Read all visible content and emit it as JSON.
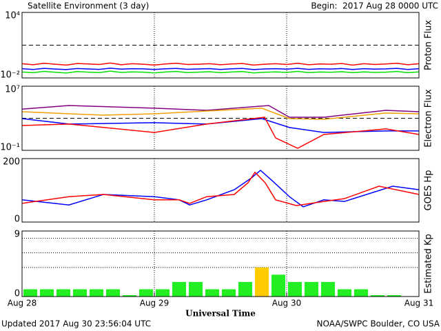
{
  "title": "Satellite Environment (3 day)",
  "begin": "Begin:  2017 Aug 28 0000 UTC",
  "updated": "Updated 2017 Aug 30 23:56:04 UTC",
  "credit": "NOAA/SWPC Boulder, CO USA",
  "x_axis": {
    "label": "Universal Time",
    "xlim": [
      0,
      72
    ],
    "xticks": [
      {
        "value": 0,
        "label": "Aug 28"
      },
      {
        "value": 24,
        "label": "Aug 29"
      },
      {
        "value": 48,
        "label": "Aug 30"
      },
      {
        "value": 72,
        "label": "Aug 31"
      }
    ]
  },
  "chart_data": [
    {
      "type": "line",
      "ylabel": "Proton Flux",
      "log": true,
      "ylim": [
        0.01,
        10000
      ],
      "yticks": [
        {
          "value": 10000,
          "label": "10⁴"
        },
        {
          "value": 0.01,
          "label": "10⁻²"
        }
      ],
      "threshold": 10,
      "series": [
        {
          "color": "#ff0000",
          "x": [
            0,
            2,
            4,
            6,
            8,
            10,
            12,
            14,
            16,
            18,
            20,
            22,
            24,
            26,
            28,
            30,
            32,
            34,
            36,
            38,
            40,
            42,
            44,
            46,
            48,
            50,
            52,
            54,
            56,
            58,
            60,
            62,
            64,
            66,
            68,
            70,
            72
          ],
          "values": [
            0.2,
            0.16,
            0.22,
            0.18,
            0.15,
            0.21,
            0.19,
            0.17,
            0.23,
            0.16,
            0.2,
            0.18,
            0.15,
            0.19,
            0.22,
            0.17,
            0.18,
            0.2,
            0.16,
            0.19,
            0.21,
            0.15,
            0.18,
            0.2,
            0.17,
            0.22,
            0.16,
            0.19,
            0.18,
            0.21,
            0.15,
            0.2,
            0.17,
            0.19,
            0.22,
            0.16,
            0.2
          ]
        },
        {
          "color": "#0000ff",
          "x": [
            0,
            2,
            4,
            6,
            8,
            10,
            12,
            14,
            16,
            18,
            20,
            22,
            24,
            26,
            28,
            30,
            32,
            34,
            36,
            38,
            40,
            42,
            44,
            46,
            48,
            50,
            52,
            54,
            56,
            58,
            60,
            62,
            64,
            66,
            68,
            70,
            72
          ],
          "values": [
            0.07,
            0.06,
            0.075,
            0.065,
            0.058,
            0.072,
            0.066,
            0.061,
            0.078,
            0.063,
            0.07,
            0.067,
            0.059,
            0.068,
            0.074,
            0.062,
            0.066,
            0.071,
            0.06,
            0.069,
            0.073,
            0.058,
            0.066,
            0.07,
            0.063,
            0.076,
            0.061,
            0.068,
            0.065,
            0.072,
            0.059,
            0.07,
            0.064,
            0.067,
            0.075,
            0.06,
            0.07
          ]
        },
        {
          "color": "#00e000",
          "x": [
            0,
            2,
            4,
            6,
            8,
            10,
            12,
            14,
            16,
            18,
            20,
            22,
            24,
            26,
            28,
            30,
            32,
            34,
            36,
            38,
            40,
            42,
            44,
            46,
            48,
            50,
            52,
            54,
            56,
            58,
            60,
            62,
            64,
            66,
            68,
            70,
            72
          ],
          "values": [
            0.035,
            0.03,
            0.04,
            0.033,
            0.028,
            0.038,
            0.034,
            0.031,
            0.042,
            0.032,
            0.036,
            0.034,
            0.029,
            0.035,
            0.039,
            0.031,
            0.034,
            0.037,
            0.03,
            0.035,
            0.038,
            0.029,
            0.033,
            0.036,
            0.032,
            0.04,
            0.031,
            0.035,
            0.033,
            0.037,
            0.03,
            0.036,
            0.032,
            0.034,
            0.039,
            0.03,
            0.036
          ]
        }
      ]
    },
    {
      "type": "line",
      "ylabel": "Electron Flux",
      "log": true,
      "ylim": [
        0.1,
        10000000
      ],
      "yticks": [
        {
          "value": 10000000,
          "label": "10⁷"
        },
        {
          "value": 0.1,
          "label": "10⁻¹"
        }
      ],
      "threshold": 1000,
      "series": [
        {
          "color": "#800080",
          "x": [
            0,
            8.5,
            24,
            33.5,
            44.75,
            48.5,
            54.75,
            66,
            72
          ],
          "values": [
            14000,
            39000,
            18000,
            9800,
            39000,
            1350,
            1350,
            9800,
            6600
          ]
        },
        {
          "color": "#f0a000",
          "x": [
            0,
            14.75,
            24,
            33.5,
            43.5,
            48.5,
            54.75,
            66,
            72
          ],
          "values": [
            6600,
            2450,
            3600,
            8000,
            18000,
            900,
            740,
            4500,
            3600
          ]
        },
        {
          "color": "#0000ff",
          "x": [
            0,
            8.5,
            24,
            33.5,
            43.5,
            48.5,
            54.75,
            66,
            72
          ],
          "values": [
            900,
            190,
            280,
            190,
            900,
            70,
            17,
            26,
            26
          ]
        },
        {
          "color": "#ff0000",
          "x": [
            0,
            8.5,
            24,
            33.5,
            44,
            46,
            50,
            54.75,
            66,
            72
          ],
          "values": [
            125,
            190,
            17,
            190,
            1350,
            3.5,
            0.18,
            9.5,
            47,
            9.5
          ]
        }
      ]
    },
    {
      "type": "line",
      "ylabel": "GOES Hp",
      "ylim": [
        0,
        200
      ],
      "yticks": [
        200,
        0
      ],
      "series": [
        {
          "color": "#0000ff",
          "x": [
            0,
            8.5,
            14.75,
            24,
            28.5,
            30.4,
            33.5,
            38.5,
            41.6,
            43.25,
            45.4,
            48.5,
            51,
            54.75,
            58.5,
            67.25,
            72
          ],
          "values": [
            70,
            54,
            87,
            80,
            70,
            54,
            70,
            102,
            139,
            163,
            130,
            80,
            48,
            70,
            65,
            113,
            102
          ]
        },
        {
          "color": "#ff0000",
          "x": [
            0,
            8.5,
            14.75,
            24,
            28.5,
            30.4,
            33.5,
            38.5,
            41,
            42.25,
            44.1,
            46,
            49.75,
            54.75,
            58.5,
            64.75,
            72
          ],
          "values": [
            59,
            80,
            87,
            70,
            70,
            59,
            80,
            87,
            124,
            157,
            124,
            70,
            52,
            65,
            74,
            113,
            87
          ]
        }
      ]
    },
    {
      "type": "bar",
      "ylabel": "Estimated Kp",
      "ylim": [
        0,
        9
      ],
      "yticks": [
        9,
        0
      ],
      "grid_lines": [
        4,
        6,
        8
      ],
      "bar_hours": 3,
      "values": [
        1,
        1,
        1,
        1,
        1,
        1,
        0,
        1,
        1,
        2,
        2,
        1,
        1,
        2,
        4,
        3,
        2,
        2,
        2,
        1,
        1,
        0,
        0
      ],
      "colors": [
        "#22ee22",
        "#22ee22",
        "#22ee22",
        "#22ee22",
        "#22ee22",
        "#22ee22",
        "#22ee22",
        "#22ee22",
        "#22ee22",
        "#22ee22",
        "#22ee22",
        "#22ee22",
        "#22ee22",
        "#22ee22",
        "#ffcc00",
        "#22ee22",
        "#22ee22",
        "#22ee22",
        "#22ee22",
        "#22ee22",
        "#22ee22",
        "#22ee22",
        "#22ee22"
      ]
    }
  ]
}
